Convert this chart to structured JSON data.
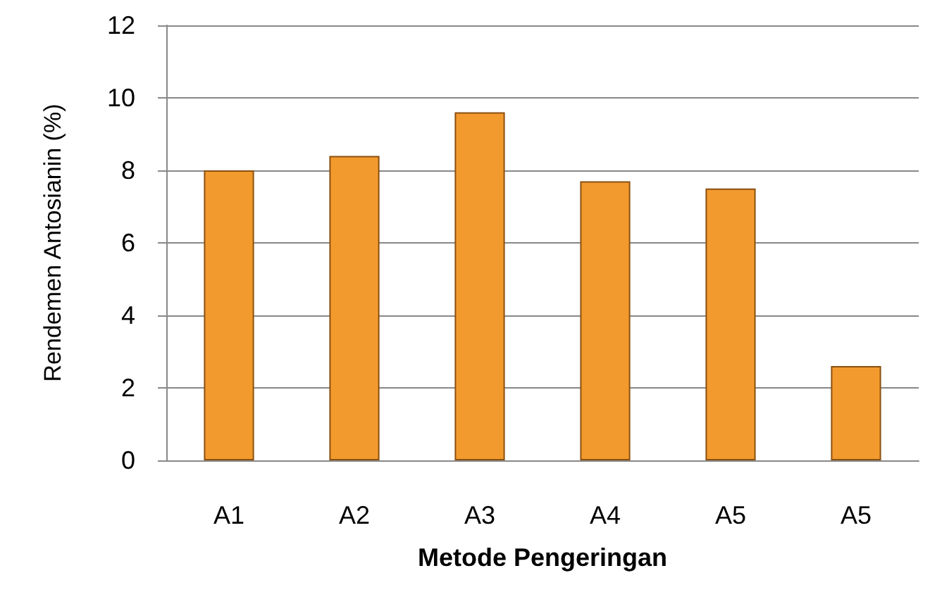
{
  "chart_data": {
    "type": "bar",
    "xlabel": "Metode Pengeringan",
    "ylabel": "Rendemen Antosianin (%)",
    "categories": [
      "A1",
      "A2",
      "A3",
      "A4",
      "A5",
      "A5"
    ],
    "values": [
      8.0,
      8.4,
      9.6,
      7.7,
      7.5,
      2.6
    ],
    "color": "#f39a2e",
    "ylim": [
      0,
      12
    ],
    "yticks": [
      0,
      2,
      4,
      6,
      8,
      10,
      12
    ],
    "grid": "y"
  }
}
